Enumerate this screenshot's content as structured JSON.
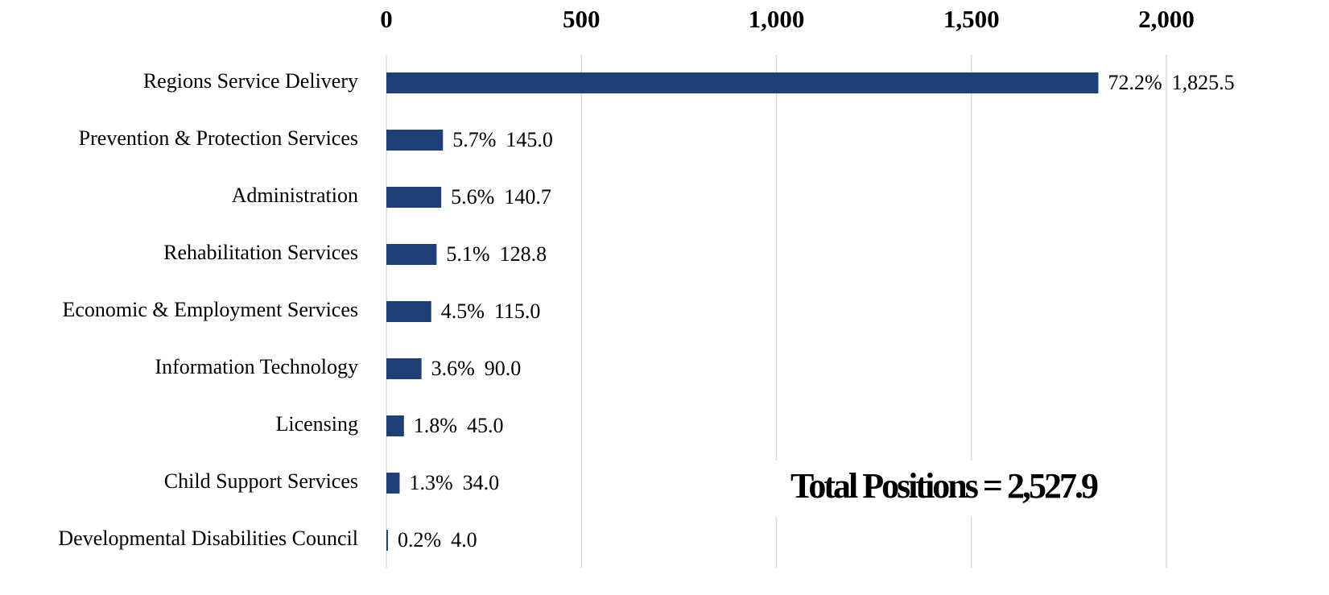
{
  "chart_data": {
    "type": "barh",
    "categories": [
      "Regions Service Delivery",
      "Prevention & Protection Services",
      "Administration",
      "Rehabilitation Services",
      "Economic & Employment Services",
      "Information Technology",
      "Licensing",
      "Child Support Services",
      "Developmental Disabilities Council"
    ],
    "values": [
      1825.5,
      145.0,
      140.7,
      128.8,
      115.0,
      90.0,
      45.0,
      34.0,
      4.0
    ],
    "value_labels": [
      "1,825.5",
      "145.0",
      "140.7",
      "128.8",
      "115.0",
      "90.0",
      "45.0",
      "34.0",
      "4.0"
    ],
    "percent_labels": [
      "72.2%",
      "5.7%",
      "5.6%",
      "5.1%",
      "4.5%",
      "3.6%",
      "1.8%",
      "1.3%",
      "0.2%"
    ],
    "color": "#1f3f77",
    "xlim": [
      0,
      2000
    ],
    "xticks": [
      0,
      500,
      {
        "value": 1000,
        "label": "1,000"
      },
      {
        "value": 1500,
        "label": "1,500"
      },
      {
        "value": 2000,
        "label": "2,000"
      }
    ],
    "grid": true,
    "annotation": "Total Positions = 2,527.9"
  }
}
